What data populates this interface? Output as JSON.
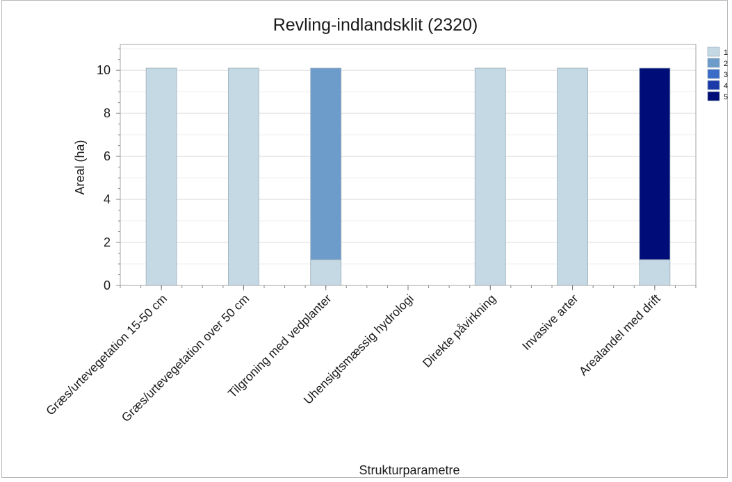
{
  "chart_data": {
    "type": "bar",
    "stacked": true,
    "title": "Revling-indlandsklit (2320)",
    "xlabel": "Strukturparametre",
    "ylabel": "Areal (ha)",
    "ylim": [
      0,
      11.2
    ],
    "yticks": [
      0,
      2,
      4,
      6,
      8,
      10
    ],
    "grid": true,
    "legend_position": "top-right",
    "categories": [
      "Græs/urtevegetation 15-50 cm",
      "Græs/urtevegetation over 50 cm",
      "Tilgroning med vedplanter",
      "Uhensigtsmæssig hydrologi",
      "Direkte påvirkning",
      "Invasive arter",
      "Arealandel med drift"
    ],
    "series": [
      {
        "name": "1",
        "color": "#c5d9e5",
        "values": [
          10.1,
          10.1,
          1.2,
          0,
          10.1,
          10.1,
          1.2
        ]
      },
      {
        "name": "2",
        "color": "#6d9ccb",
        "values": [
          0,
          0,
          8.9,
          0,
          0,
          0,
          0
        ]
      },
      {
        "name": "3",
        "color": "#3a6cc7",
        "values": [
          0,
          0,
          0,
          0,
          0,
          0,
          0
        ]
      },
      {
        "name": "4",
        "color": "#1b3aa8",
        "values": [
          0,
          0,
          0,
          0,
          0,
          0,
          0
        ]
      },
      {
        "name": "5",
        "color": "#000c78",
        "values": [
          0,
          0,
          0,
          0,
          0,
          0,
          8.9
        ]
      }
    ]
  }
}
